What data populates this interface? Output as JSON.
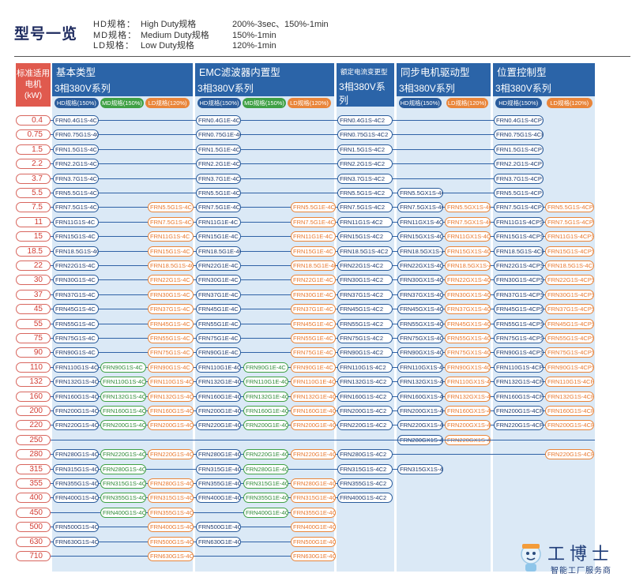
{
  "title": "型号一览",
  "legend": [
    {
      "code": "HD规格：",
      "name": "High Duty规格",
      "spec": "200%-3sec、150%-1min"
    },
    {
      "code": "MD规格：",
      "name": "Medium Duty规格",
      "spec": "150%-1min"
    },
    {
      "code": "LD规格：",
      "name": "Low Duty规格",
      "spec": "120%-1min"
    }
  ],
  "kw_header": [
    "标准适用",
    "电机",
    "(kW)"
  ],
  "groups": [
    {
      "name": "基本类型",
      "series": "3相380V系列",
      "pills": [
        {
          "label": "HD规格(150%)",
          "color": "#2a5c9c"
        },
        {
          "label": "MD规格(150%)",
          "color": "#3fa045"
        },
        {
          "label": "LD规格(120%)",
          "color": "#e9853a"
        }
      ]
    },
    {
      "name": "EMC滤波器内置型",
      "series": "3相380V系列",
      "pills": [
        {
          "label": "HD规格(150%)",
          "color": "#2a5c9c"
        },
        {
          "label": "MD规格(150%)",
          "color": "#3fa045"
        },
        {
          "label": "LD规格(120%)",
          "color": "#e9853a"
        }
      ]
    },
    {
      "name": "额定电流变更型",
      "series": "3相380V系列",
      "pills": []
    },
    {
      "name": "同步电机驱动型",
      "series": "3相380V系列",
      "pills": [
        {
          "label": "HD规格(150%)",
          "color": "#2a5c9c"
        },
        {
          "label": "LD规格(120%)",
          "color": "#e9853a"
        }
      ]
    },
    {
      "name": "位置控制型",
      "series": "3相380V系列",
      "pills": [
        {
          "label": "HD规格(150%)",
          "color": "#2a5c9c"
        },
        {
          "label": "LD规格(120%)",
          "color": "#e9853a"
        }
      ]
    }
  ],
  "kw": [
    "0.4",
    "0.75",
    "1.5",
    "2.2",
    "3.7",
    "5.5",
    "7.5",
    "11",
    "15",
    "18.5",
    "22",
    "30",
    "37",
    "45",
    "55",
    "75",
    "90",
    "110",
    "132",
    "160",
    "200",
    "220",
    "250",
    "280",
    "315",
    "355",
    "400",
    "450",
    "500",
    "630",
    "710"
  ],
  "rows": [
    [
      "FRN0.4G1S-4C",
      "",
      "",
      "FRN0.4G1E-4C",
      "",
      "",
      "FRN0.4G1S-4C2",
      "",
      "",
      "FRN0.4G1S-4CPS",
      ""
    ],
    [
      "FRN0.75G1S-4C",
      "",
      "",
      "FRN0.75G1E-4C",
      "",
      "",
      "FRN0.75G1S-4C2",
      "",
      "",
      "FRN0.75G1S-4CPS",
      ""
    ],
    [
      "FRN1.5G1S-4C",
      "",
      "",
      "FRN1.5G1E-4C",
      "",
      "",
      "FRN1.5G1S-4C2",
      "",
      "",
      "FRN1.5G1S-4CPS",
      ""
    ],
    [
      "FRN2.2G1S-4C",
      "",
      "",
      "FRN2.2G1E-4C",
      "",
      "",
      "FRN2.2G1S-4C2",
      "",
      "",
      "FRN2.2G1S-4CPS",
      ""
    ],
    [
      "FRN3.7G1S-4C",
      "",
      "",
      "FRN3.7G1E-4C",
      "",
      "",
      "FRN3.7G1S-4C2",
      "",
      "",
      "FRN3.7G1S-4CPS",
      ""
    ],
    [
      "FRN5.5G1S-4C",
      "",
      "",
      "FRN5.5G1E-4C",
      "",
      "",
      "FRN5.5G1S-4C2",
      "FRN5.5GX1S-4C",
      "",
      "FRN5.5G1S-4CPS",
      ""
    ],
    [
      "FRN7.5G1S-4C",
      "",
      "FRN5.5G1S-4C",
      "FRN7.5G1E-4C",
      "",
      "FRN5.5G1E-4C",
      "FRN7.5G1S-4C2",
      "FRN7.5GX1S-4C",
      "FRN5.5GX1S-4C",
      "FRN7.5G1S-4CPS",
      "FRN5.5G1S-4CPS"
    ],
    [
      "FRN11G1S-4C",
      "",
      "FRN7.5G1S-4C",
      "FRN11G1E-4C",
      "",
      "FRN7.5G1E-4C",
      "FRN11G1S-4C2",
      "FRN11GX1S-4C",
      "FRN7.5GX1S-4C",
      "FRN11G1S-4CPS",
      "FRN7.5G1S-4CPS"
    ],
    [
      "FRN15G1S-4C",
      "",
      "FRN11G1S-4C",
      "FRN15G1E-4C",
      "",
      "FRN11G1E-4C",
      "FRN15G1S-4C2",
      "FRN15GX1S-4C",
      "FRN11GX1S-4C",
      "FRN15G1S-4CPS",
      "FRN11G1S-4CPS"
    ],
    [
      "FRN18.5G1S-4C",
      "",
      "FRN15G1S-4C",
      "FRN18.5G1E-4C",
      "",
      "FRN15G1E-4C",
      "FRN18.5G1S-4C2",
      "FRN18.5GX1S-4C",
      "FRN15GX1S-4C",
      "FRN18.5G1S-4CPS",
      "FRN15G1S-4CPS"
    ],
    [
      "FRN22G1S-4C",
      "",
      "FRN18.5G1S-4C",
      "FRN22G1E-4C",
      "",
      "FRN18.5G1E-4C",
      "FRN22G1S-4C2",
      "FRN22GX1S-4C",
      "FRN18.5GX1S-4C",
      "FRN22G1S-4CPS",
      "FRN18.5G1S-4CPS"
    ],
    [
      "FRN30G1S-4C",
      "",
      "FRN22G1S-4C",
      "FRN30G1E-4C",
      "",
      "FRN22G1E-4C",
      "FRN30G1S-4C2",
      "FRN30GX1S-4C",
      "FRN22GX1S-4C",
      "FRN30G1S-4CPS",
      "FRN22G1S-4CPS"
    ],
    [
      "FRN37G1S-4C",
      "",
      "FRN30G1S-4C",
      "FRN37G1E-4C",
      "",
      "FRN30G1E-4C",
      "FRN37G1S-4C2",
      "FRN37GX1S-4C",
      "FRN30GX1S-4C",
      "FRN37G1S-4CPS",
      "FRN30G1S-4CPS"
    ],
    [
      "FRN45G1S-4C",
      "",
      "FRN37G1S-4C",
      "FRN45G1E-4C",
      "",
      "FRN37G1E-4C",
      "FRN45G1S-4C2",
      "FRN45GX1S-4C",
      "FRN37GX1S-4C",
      "FRN45G1S-4CPS",
      "FRN37G1S-4CPS"
    ],
    [
      "FRN55G1S-4C",
      "",
      "FRN45G1S-4C",
      "FRN55G1E-4C",
      "",
      "FRN45G1E-4C",
      "FRN55G1S-4C2",
      "FRN55GX1S-4C",
      "FRN45GX1S-4C",
      "FRN55G1S-4CPS",
      "FRN45G1S-4CPS"
    ],
    [
      "FRN75G1S-4C",
      "",
      "FRN55G1S-4C",
      "FRN75G1E-4C",
      "",
      "FRN55G1E-4C",
      "FRN75G1S-4C2",
      "FRN75GX1S-4C",
      "FRN55GX1S-4C",
      "FRN75G1S-4CPS",
      "FRN55G1S-4CPS"
    ],
    [
      "FRN90G1S-4C",
      "",
      "FRN75G1S-4C",
      "FRN90G1E-4C",
      "",
      "FRN75G1E-4C",
      "FRN90G1S-4C2",
      "FRN90GX1S-4C",
      "FRN75GX1S-4C",
      "FRN90G1S-4CPS",
      "FRN75G1S-4CPS"
    ],
    [
      "FRN110G1S-4C",
      "FRN90G1S-4C",
      "FRN90G1S-4C",
      "FRN110G1E-4C",
      "FRN90G1E-4C",
      "FRN90G1E-4C",
      "FRN110G1S-4C2",
      "FRN110GX1S-4C",
      "FRN90GX1S-4C",
      "FRN110G1S-4CPS",
      "FRN90G1S-4CPS"
    ],
    [
      "FRN132G1S-4C",
      "FRN110G1S-4C",
      "FRN110G1S-4C",
      "FRN132G1E-4C",
      "FRN110G1E-4C",
      "FRN110G1E-4C",
      "FRN132G1S-4C2",
      "FRN132GX1S-4C",
      "FRN110GX1S-4C",
      "FRN132G1S-4CPS",
      "FRN110G1S-4CPS"
    ],
    [
      "FRN160G1S-4C",
      "FRN132G1S-4C",
      "FRN132G1S-4C",
      "FRN160G1E-4C",
      "FRN132G1E-4C",
      "FRN132G1E-4C",
      "FRN160G1S-4C2",
      "FRN160GX1S-4C",
      "FRN132GX1S-4C",
      "FRN160G1S-4CPS",
      "FRN132G1S-4CPS"
    ],
    [
      "FRN200G1S-4C",
      "FRN160G1S-4C",
      "FRN160G1S-4C",
      "FRN200G1E-4C",
      "FRN160G1E-4C",
      "FRN160G1E-4C",
      "FRN200G1S-4C2",
      "FRN200GX1S-4C",
      "FRN160GX1S-4C",
      "FRN200G1S-4CPS",
      "FRN160G1S-4CPS"
    ],
    [
      "FRN220G1S-4C",
      "FRN200G1S-4C",
      "FRN200G1S-4C",
      "FRN220G1E-4C",
      "FRN200G1E-4C",
      "FRN200G1E-4C",
      "FRN220G1S-4C2",
      "FRN220GX1S-4C",
      "FRN200GX1S-4C",
      "FRN220G1S-4CPS",
      "FRN200G1S-4CPS"
    ],
    [
      "",
      "",
      "",
      "",
      "",
      "",
      "",
      "FRN280GX1S-4C",
      "FRN220GX1S-4C",
      "",
      ""
    ],
    [
      "FRN280G1S-4C",
      "FRN220G1S-4C",
      "FRN220G1S-4C",
      "FRN280G1E-4C",
      "FRN220G1E-4C",
      "FRN220G1E-4C",
      "FRN280G1S-4C2",
      "",
      "",
      "",
      "FRN220G1S-4CPS"
    ],
    [
      "FRN315G1S-4C",
      "FRN280G1S-4C",
      "",
      "FRN315G1E-4C",
      "FRN280G1E-4C",
      "",
      "FRN315G1S-4C2",
      "FRN315GX1S-4C",
      "",
      "",
      ""
    ],
    [
      "FRN355G1S-4C",
      "FRN315G1S-4C",
      "FRN280G1S-4C",
      "FRN355G1E-4C",
      "FRN315G1E-4C",
      "FRN280G1E-4C",
      "FRN355G1S-4C2",
      "",
      "",
      "",
      ""
    ],
    [
      "FRN400G1S-4C",
      "FRN355G1S-4C",
      "FRN315G1S-4C",
      "FRN400G1E-4C",
      "FRN355G1E-4C",
      "FRN315G1E-4C",
      "FRN400G1S-4C2",
      "",
      "",
      "",
      ""
    ],
    [
      "",
      "FRN400G1S-4C",
      "FRN355G1S-4C",
      "",
      "FRN400G1E-4C",
      "FRN355G1E-4C",
      "",
      "",
      "",
      "",
      ""
    ],
    [
      "FRN500G1S-4C",
      "",
      "FRN400G1S-4C",
      "FRN500G1E-4C",
      "",
      "FRN400G1E-4C",
      "",
      "",
      "",
      "",
      ""
    ],
    [
      "FRN630G1S-4C",
      "",
      "FRN500G1S-4C",
      "FRN630G1E-4C",
      "",
      "FRN500G1E-4C",
      "",
      "",
      "",
      "",
      ""
    ],
    [
      "",
      "",
      "FRN630G1S-4C",
      "",
      "",
      "FRN630G1E-4C",
      "",
      "",
      "",
      "",
      ""
    ]
  ],
  "lines": [
    [
      22,
      1,
      10
    ]
  ],
  "brand": {
    "name": "工博士",
    "tagline": "智能工厂服务商"
  }
}
